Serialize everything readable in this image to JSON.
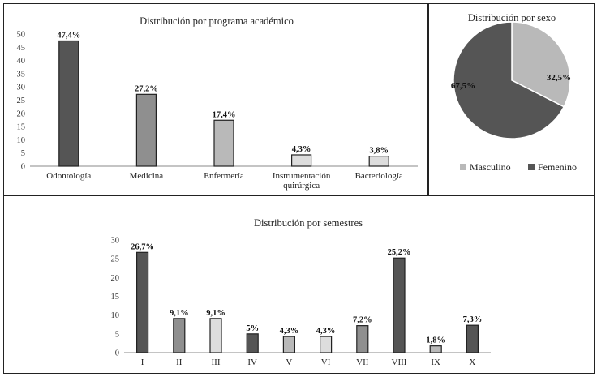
{
  "colors": {
    "dark": "#555555",
    "mid": "#8f8f8f",
    "light": "#b9b9b9",
    "xlight": "#dddddd",
    "stroke": "#222222"
  },
  "chart_data": [
    {
      "id": "program",
      "type": "bar",
      "title": "Distribución por programa académico",
      "categories": [
        "Odontología",
        "Medicina",
        "Enfermería",
        [
          "Instrumentación",
          "quirúrgica"
        ],
        "Bacteriología"
      ],
      "values": [
        47.4,
        27.2,
        17.4,
        4.3,
        3.8
      ],
      "labels": [
        "47,4%",
        "27,2%",
        "17,4%",
        "4,3%",
        "3,8%"
      ],
      "fills": [
        "dark",
        "mid",
        "light",
        "xlight",
        "xlight"
      ],
      "ylim": [
        0,
        50
      ],
      "yticks": [
        0,
        5,
        10,
        15,
        20,
        25,
        30,
        35,
        40,
        45,
        50
      ],
      "xlabel": "",
      "ylabel": ""
    },
    {
      "id": "sex",
      "type": "pie",
      "title": "Distribución por sexo",
      "categories": [
        "Masculino",
        "Femenino"
      ],
      "values": [
        32.5,
        67.5
      ],
      "labels": [
        "32,5%",
        "67,5%"
      ],
      "fills": [
        "light",
        "dark"
      ],
      "legend": "bottom"
    },
    {
      "id": "semesters",
      "type": "bar",
      "title": "Distribución por semestres",
      "categories": [
        "I",
        "II",
        "III",
        "IV",
        "V",
        "VI",
        "VII",
        "VIII",
        "IX",
        "X"
      ],
      "values": [
        26.7,
        9.1,
        9.1,
        5,
        4.3,
        4.3,
        7.2,
        25.2,
        1.8,
        7.3
      ],
      "labels": [
        "26,7%",
        "9,1%",
        "9,1%",
        "5%",
        "4,3%",
        "4,3%",
        "7,2%",
        "25,2%",
        "1,8%",
        "7,3%"
      ],
      "fills": [
        "dark",
        "mid",
        "xlight",
        "dark",
        "light",
        "xlight",
        "mid",
        "dark",
        "light",
        "dark"
      ],
      "ylim": [
        0,
        30
      ],
      "yticks": [
        0,
        5,
        10,
        15,
        20,
        25,
        30
      ],
      "xlabel": "",
      "ylabel": ""
    }
  ]
}
